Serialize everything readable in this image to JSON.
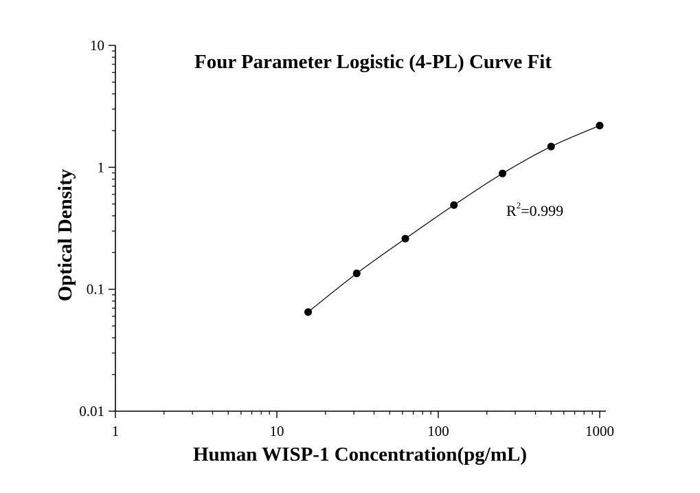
{
  "chart_data": {
    "type": "scatter",
    "title": "Four Parameter Logistic (4-PL) Curve Fit",
    "xlabel": "Human WISP-1 Concentration(pg/mL)",
    "ylabel": "Optical Density",
    "xscale": "log",
    "yscale": "log",
    "xlim": [
      1,
      1000
    ],
    "ylim": [
      0.01,
      10
    ],
    "x_ticks": [
      "1",
      "10",
      "100",
      "1000"
    ],
    "y_ticks": [
      "0.01",
      "0.1",
      "1",
      "10"
    ],
    "grid": false,
    "legend": "none",
    "annotation": {
      "prefix": "R",
      "superscript": "2",
      "suffix": "=0.999"
    },
    "series": [
      {
        "x": [
          15.625,
          31.25,
          62.5,
          125,
          250,
          500,
          1000
        ],
        "y": [
          0.065,
          0.135,
          0.26,
          0.49,
          0.89,
          1.48,
          2.2
        ]
      }
    ],
    "fit_curve": true,
    "colors": {
      "marker": "#000000",
      "line": "#000000",
      "axis": "#000000"
    }
  }
}
